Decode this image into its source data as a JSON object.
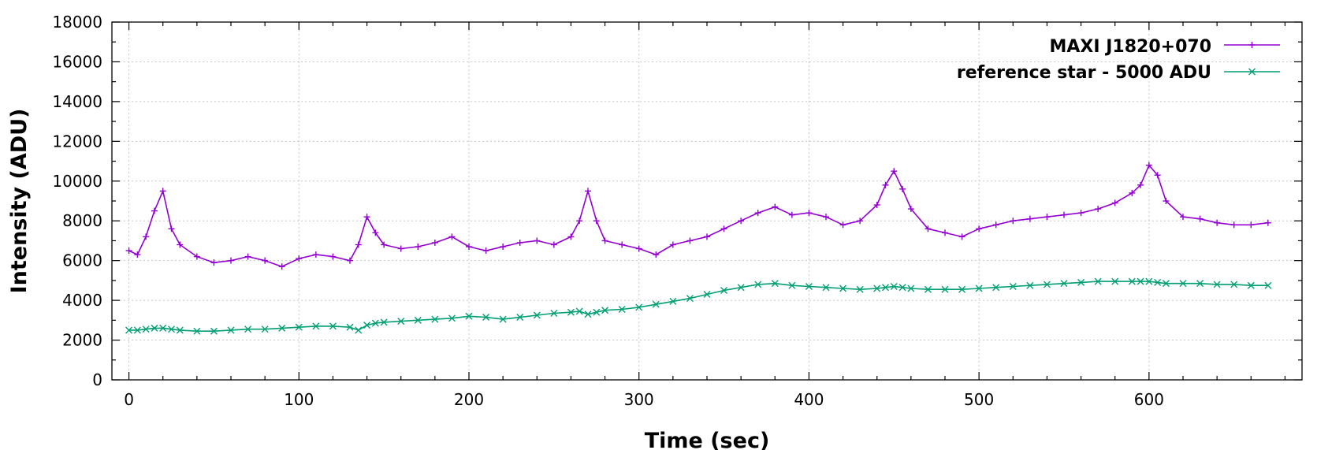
{
  "chart_data": {
    "type": "line",
    "title": "",
    "xlabel": "Time (sec)",
    "ylabel": "Intensity (ADU)",
    "xlim": [
      -10,
      690
    ],
    "ylim": [
      0,
      18000
    ],
    "x_ticks": [
      0,
      100,
      200,
      300,
      400,
      500,
      600
    ],
    "y_ticks": [
      0,
      2000,
      4000,
      6000,
      8000,
      10000,
      12000,
      14000,
      16000,
      18000
    ],
    "grid": true,
    "legend_position": "top-right",
    "x": [
      0,
      5,
      10,
      15,
      20,
      25,
      30,
      40,
      50,
      60,
      70,
      80,
      90,
      100,
      110,
      120,
      130,
      135,
      140,
      145,
      150,
      160,
      170,
      180,
      190,
      200,
      210,
      220,
      230,
      240,
      250,
      260,
      265,
      270,
      275,
      280,
      290,
      300,
      310,
      320,
      330,
      340,
      350,
      360,
      370,
      380,
      390,
      400,
      410,
      420,
      430,
      440,
      445,
      450,
      455,
      460,
      470,
      480,
      490,
      500,
      510,
      520,
      530,
      540,
      550,
      560,
      570,
      580,
      590,
      595,
      600,
      605,
      610,
      620,
      630,
      640,
      650,
      660,
      670
    ],
    "series": [
      {
        "name": "MAXI J1820+070",
        "color": "#9400d3",
        "marker": "plus",
        "values": [
          6500,
          6300,
          7200,
          8500,
          9500,
          7600,
          6800,
          6200,
          5900,
          6000,
          6200,
          6000,
          5700,
          6100,
          6300,
          6200,
          6000,
          6800,
          8200,
          7400,
          6800,
          6600,
          6700,
          6900,
          7200,
          6700,
          6500,
          6700,
          6900,
          7000,
          6800,
          7200,
          8000,
          9500,
          8000,
          7000,
          6800,
          6600,
          6300,
          6800,
          7000,
          7200,
          7600,
          8000,
          8400,
          8700,
          8300,
          8400,
          8200,
          7800,
          8000,
          8800,
          9800,
          10500,
          9600,
          8600,
          7600,
          7400,
          7200,
          7600,
          7800,
          8000,
          8100,
          8200,
          8300,
          8400,
          8600,
          8900,
          9400,
          9800,
          10800,
          10300,
          9000,
          8200,
          8100,
          7900,
          7800,
          7800,
          7900
        ]
      },
      {
        "name": "reference star - 5000 ADU",
        "color": "#009e73",
        "marker": "cross",
        "values": [
          2500,
          2500,
          2550,
          2600,
          2600,
          2550,
          2500,
          2450,
          2450,
          2500,
          2550,
          2550,
          2600,
          2650,
          2700,
          2700,
          2650,
          2500,
          2750,
          2850,
          2900,
          2950,
          3000,
          3050,
          3100,
          3200,
          3150,
          3050,
          3150,
          3250,
          3350,
          3400,
          3450,
          3300,
          3400,
          3500,
          3550,
          3650,
          3800,
          3950,
          4100,
          4300,
          4500,
          4650,
          4800,
          4850,
          4750,
          4700,
          4650,
          4600,
          4550,
          4600,
          4650,
          4700,
          4650,
          4600,
          4550,
          4550,
          4550,
          4600,
          4650,
          4700,
          4750,
          4800,
          4850,
          4900,
          4950,
          4950,
          4950,
          4950,
          4950,
          4900,
          4850,
          4850,
          4850,
          4800,
          4800,
          4750,
          4750
        ]
      }
    ]
  }
}
